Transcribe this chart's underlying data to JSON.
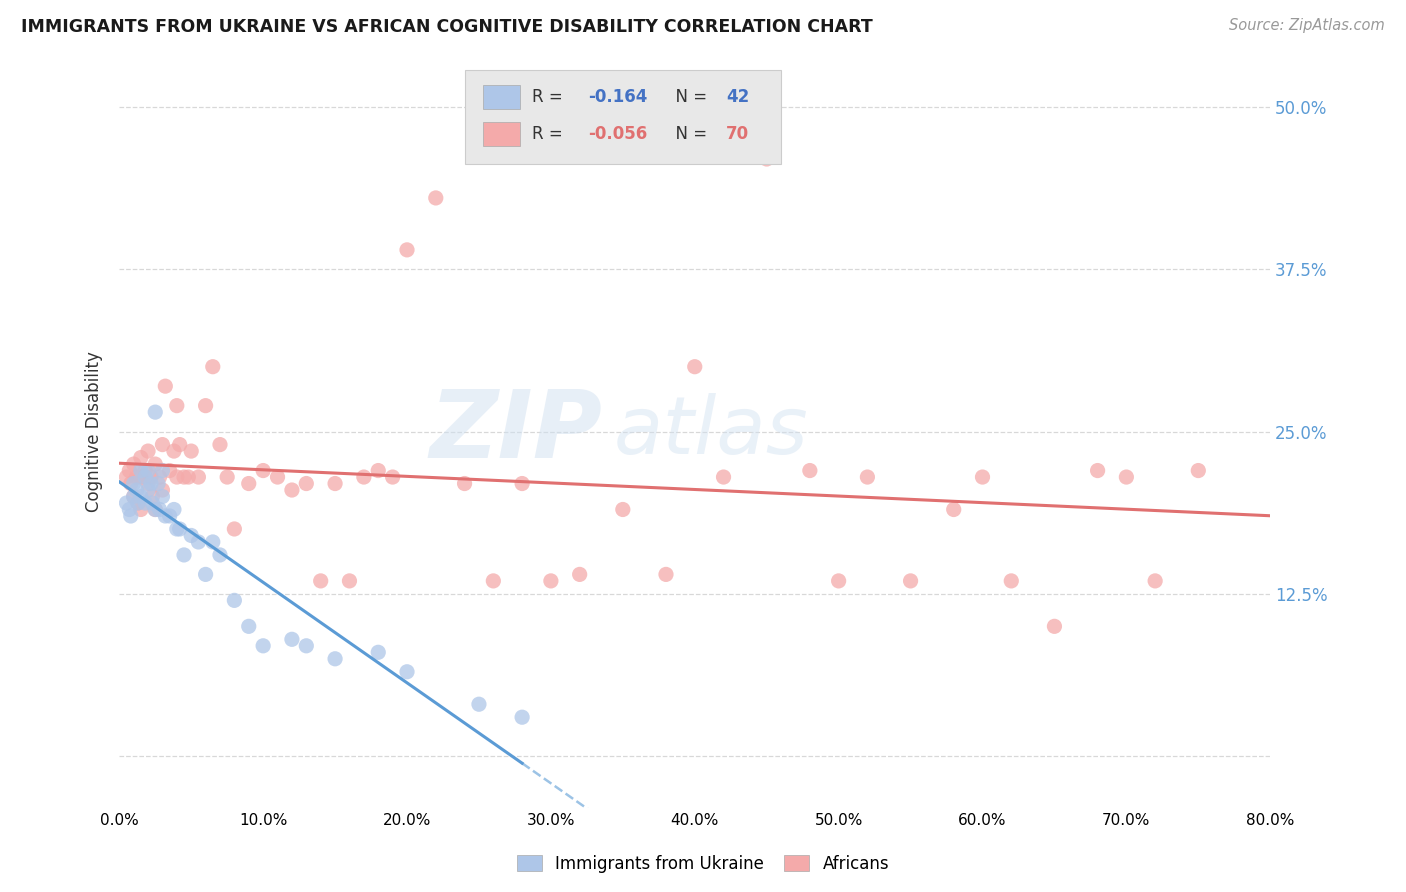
{
  "title": "IMMIGRANTS FROM UKRAINE VS AFRICAN COGNITIVE DISABILITY CORRELATION CHART",
  "source": "Source: ZipAtlas.com",
  "ylabel": "Cognitive Disability",
  "ytick_labels": [
    "",
    "12.5%",
    "25.0%",
    "37.5%",
    "50.0%"
  ],
  "ytick_values": [
    0.0,
    0.125,
    0.25,
    0.375,
    0.5
  ],
  "xlim": [
    0.0,
    0.8
  ],
  "ylim": [
    -0.04,
    0.54
  ],
  "ukraine_color": "#aec6e8",
  "ukraine_color_dark": "#5b9bd5",
  "africa_color": "#f4aaaa",
  "africa_color_dark": "#e07070",
  "ukraine_R": -0.164,
  "ukraine_N": 42,
  "africa_R": -0.056,
  "africa_N": 70,
  "ukraine_scatter_x": [
    0.005,
    0.007,
    0.008,
    0.01,
    0.01,
    0.012,
    0.013,
    0.015,
    0.015,
    0.018,
    0.018,
    0.02,
    0.02,
    0.022,
    0.023,
    0.025,
    0.025,
    0.027,
    0.028,
    0.03,
    0.03,
    0.032,
    0.035,
    0.038,
    0.04,
    0.042,
    0.045,
    0.05,
    0.055,
    0.06,
    0.065,
    0.07,
    0.08,
    0.09,
    0.1,
    0.12,
    0.13,
    0.15,
    0.18,
    0.2,
    0.25,
    0.28
  ],
  "ukraine_scatter_y": [
    0.195,
    0.19,
    0.185,
    0.21,
    0.2,
    0.205,
    0.195,
    0.22,
    0.2,
    0.215,
    0.195,
    0.22,
    0.205,
    0.21,
    0.195,
    0.265,
    0.19,
    0.21,
    0.19,
    0.2,
    0.22,
    0.185,
    0.185,
    0.19,
    0.175,
    0.175,
    0.155,
    0.17,
    0.165,
    0.14,
    0.165,
    0.155,
    0.12,
    0.1,
    0.085,
    0.09,
    0.085,
    0.075,
    0.08,
    0.065,
    0.04,
    0.03
  ],
  "africa_scatter_x": [
    0.005,
    0.007,
    0.008,
    0.01,
    0.01,
    0.012,
    0.013,
    0.015,
    0.015,
    0.015,
    0.018,
    0.02,
    0.02,
    0.022,
    0.023,
    0.025,
    0.025,
    0.028,
    0.03,
    0.03,
    0.032,
    0.035,
    0.038,
    0.04,
    0.04,
    0.042,
    0.045,
    0.048,
    0.05,
    0.055,
    0.06,
    0.065,
    0.07,
    0.075,
    0.08,
    0.09,
    0.1,
    0.11,
    0.12,
    0.13,
    0.14,
    0.15,
    0.16,
    0.17,
    0.18,
    0.19,
    0.2,
    0.22,
    0.24,
    0.26,
    0.28,
    0.3,
    0.32,
    0.35,
    0.38,
    0.4,
    0.42,
    0.45,
    0.48,
    0.5,
    0.52,
    0.55,
    0.58,
    0.6,
    0.62,
    0.65,
    0.68,
    0.7,
    0.72,
    0.75
  ],
  "africa_scatter_y": [
    0.215,
    0.22,
    0.21,
    0.225,
    0.2,
    0.215,
    0.195,
    0.23,
    0.215,
    0.19,
    0.22,
    0.235,
    0.21,
    0.215,
    0.2,
    0.225,
    0.19,
    0.215,
    0.24,
    0.205,
    0.285,
    0.22,
    0.235,
    0.27,
    0.215,
    0.24,
    0.215,
    0.215,
    0.235,
    0.215,
    0.27,
    0.3,
    0.24,
    0.215,
    0.175,
    0.21,
    0.22,
    0.215,
    0.205,
    0.21,
    0.135,
    0.21,
    0.135,
    0.215,
    0.22,
    0.215,
    0.39,
    0.43,
    0.21,
    0.135,
    0.21,
    0.135,
    0.14,
    0.19,
    0.14,
    0.3,
    0.215,
    0.46,
    0.22,
    0.135,
    0.215,
    0.135,
    0.19,
    0.215,
    0.135,
    0.1,
    0.22,
    0.215,
    0.135,
    0.22
  ],
  "watermark_zip": "ZIP",
  "watermark_atlas": "atlas",
  "background_color": "#ffffff",
  "grid_color": "#d8d8d8",
  "right_tick_color": "#5b9bd5",
  "legend_frame_color": "#f0f0f0",
  "legend_box_color": "#e8e8e8"
}
